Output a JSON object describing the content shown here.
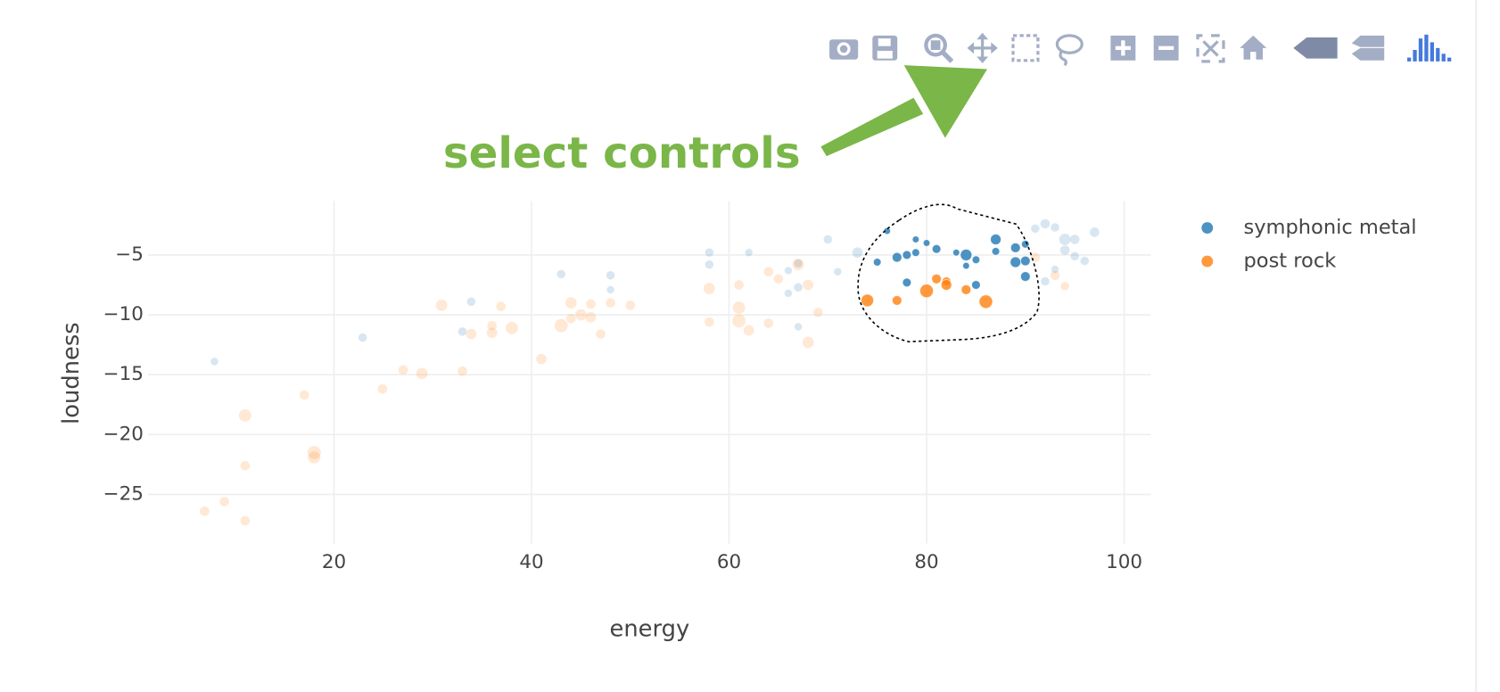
{
  "chart_data": {
    "type": "scatter",
    "annotation": "select controls",
    "x_label": "energy",
    "y_label": "loudness",
    "xlim": [
      1.2,
      102.7
    ],
    "ylim": [
      -29.1,
      -0.5
    ],
    "xticks": [
      20,
      40,
      60,
      80,
      100
    ],
    "yticks": [
      {
        "value": -5,
        "label": "−5"
      },
      {
        "value": -10,
        "label": "−10"
      },
      {
        "value": -15,
        "label": "−15"
      },
      {
        "value": -20,
        "label": "−20"
      },
      {
        "value": -25,
        "label": "−25"
      }
    ],
    "grid": true,
    "legend": "top-right",
    "series": [
      {
        "name": "symphonic metal",
        "color": "#1f77b4",
        "x": [
          76.0,
          75.0,
          77.0,
          78.0,
          78.9,
          78.9,
          80.0,
          81.0,
          78.0,
          83.0,
          84.0,
          84.0,
          85.0,
          85.0,
          87.0,
          87.0,
          89.0,
          89.0,
          90.0,
          90.0,
          90.0,
          7.9,
          22.9,
          33.0,
          33.9,
          43.0,
          48.0,
          48.0,
          58.0,
          58.0,
          62.0,
          66.0,
          66.0,
          67.0,
          67.0,
          67.0,
          70.0,
          71.0,
          73.0,
          91.0,
          92.0,
          93.0,
          94.0,
          94.0,
          95.0,
          95.0,
          96.0,
          97.0,
          92.0,
          93.0
        ],
        "values": [
          -3.0,
          -5.6,
          -5.2,
          -5.0,
          -4.8,
          -3.7,
          -4.0,
          -4.5,
          -7.3,
          -4.8,
          -5.0,
          -5.9,
          -5.4,
          -7.5,
          -3.7,
          -4.7,
          -4.4,
          -5.6,
          -4.1,
          -5.5,
          -6.8,
          -13.9,
          -11.9,
          -11.4,
          -8.9,
          -6.6,
          -6.7,
          -7.9,
          -4.8,
          -5.8,
          -4.8,
          -6.3,
          -8.2,
          -7.7,
          -11.0,
          -5.7,
          -3.7,
          -6.4,
          -4.8,
          -2.8,
          -2.4,
          -2.7,
          -3.7,
          -4.6,
          -3.7,
          -5.1,
          -5.5,
          -3.1,
          -7.2,
          -6.2
        ],
        "sizes": [
          7,
          8,
          10,
          9,
          8,
          7,
          7,
          9,
          9,
          7,
          12,
          7,
          8,
          9,
          11,
          8,
          10,
          11,
          8,
          10,
          10,
          8,
          9,
          9,
          9,
          9,
          9,
          8,
          9,
          9,
          8,
          8,
          8,
          9,
          8,
          9,
          9,
          8,
          11,
          9,
          10,
          9,
          12,
          10,
          10,
          9,
          9,
          10,
          9,
          8
        ],
        "selected": [
          true,
          true,
          true,
          true,
          true,
          true,
          true,
          true,
          true,
          true,
          true,
          true,
          true,
          true,
          true,
          true,
          true,
          true,
          true,
          true,
          true,
          false,
          false,
          false,
          false,
          false,
          false,
          false,
          false,
          false,
          false,
          false,
          false,
          false,
          false,
          false,
          false,
          false,
          false,
          false,
          false,
          false,
          false,
          false,
          false,
          false,
          false,
          false,
          false,
          false
        ]
      },
      {
        "name": "post rock",
        "color": "#ff7f0e",
        "x": [
          74.0,
          77.0,
          80.0,
          81.0,
          82.0,
          82.0,
          84.0,
          86.0,
          6.9,
          8.9,
          11.0,
          11.0,
          11.0,
          17.0,
          18.0,
          18.0,
          24.9,
          27.0,
          28.9,
          30.9,
          33.0,
          33.9,
          36.0,
          36.0,
          36.9,
          38.0,
          41.0,
          43.0,
          44.0,
          44.0,
          45.0,
          46.0,
          46.0,
          47.0,
          48.0,
          50.0,
          58.0,
          58.0,
          61.0,
          61.0,
          61.0,
          62.0,
          64.0,
          64.0,
          65.0,
          67.0,
          68.0,
          68.0,
          69.0,
          91.0,
          93.0,
          94.0
        ],
        "values": [
          -8.8,
          -8.8,
          -8.0,
          -7.0,
          -7.2,
          -7.5,
          -7.9,
          -8.9,
          -26.4,
          -25.6,
          -27.2,
          -22.6,
          -18.4,
          -16.7,
          -21.5,
          -21.9,
          -16.2,
          -14.6,
          -14.9,
          -9.2,
          -14.7,
          -11.6,
          -10.9,
          -11.5,
          -9.3,
          -11.1,
          -13.7,
          -10.9,
          -10.3,
          -9.0,
          -10.0,
          -10.2,
          -9.1,
          -11.6,
          -9.0,
          -9.2,
          -7.8,
          -10.6,
          -7.5,
          -9.4,
          -10.5,
          -11.3,
          -10.7,
          -6.4,
          -7.0,
          -5.8,
          -7.5,
          -12.3,
          -9.8,
          -5.2,
          -6.7,
          -7.6
        ],
        "sizes": [
          13,
          10,
          14,
          10,
          9,
          11,
          10,
          14,
          10,
          10,
          10,
          10,
          13,
          10,
          14,
          13,
          10,
          10,
          12,
          12,
          10,
          11,
          10,
          11,
          10,
          13,
          11,
          14,
          10,
          12,
          12,
          11,
          10,
          10,
          10,
          10,
          12,
          10,
          10,
          13,
          14,
          11,
          10,
          10,
          10,
          12,
          11,
          12,
          10,
          10,
          10,
          9
        ],
        "selected": [
          true,
          true,
          true,
          true,
          true,
          true,
          true,
          true,
          false,
          false,
          false,
          false,
          false,
          false,
          false,
          false,
          false,
          false,
          false,
          false,
          false,
          false,
          false,
          false,
          false,
          false,
          false,
          false,
          false,
          false,
          false,
          false,
          false,
          false,
          false,
          false,
          false,
          false,
          false,
          false,
          false,
          false,
          false,
          false,
          false,
          false,
          false,
          false,
          false,
          false,
          false,
          false
        ]
      }
    ]
  }
}
